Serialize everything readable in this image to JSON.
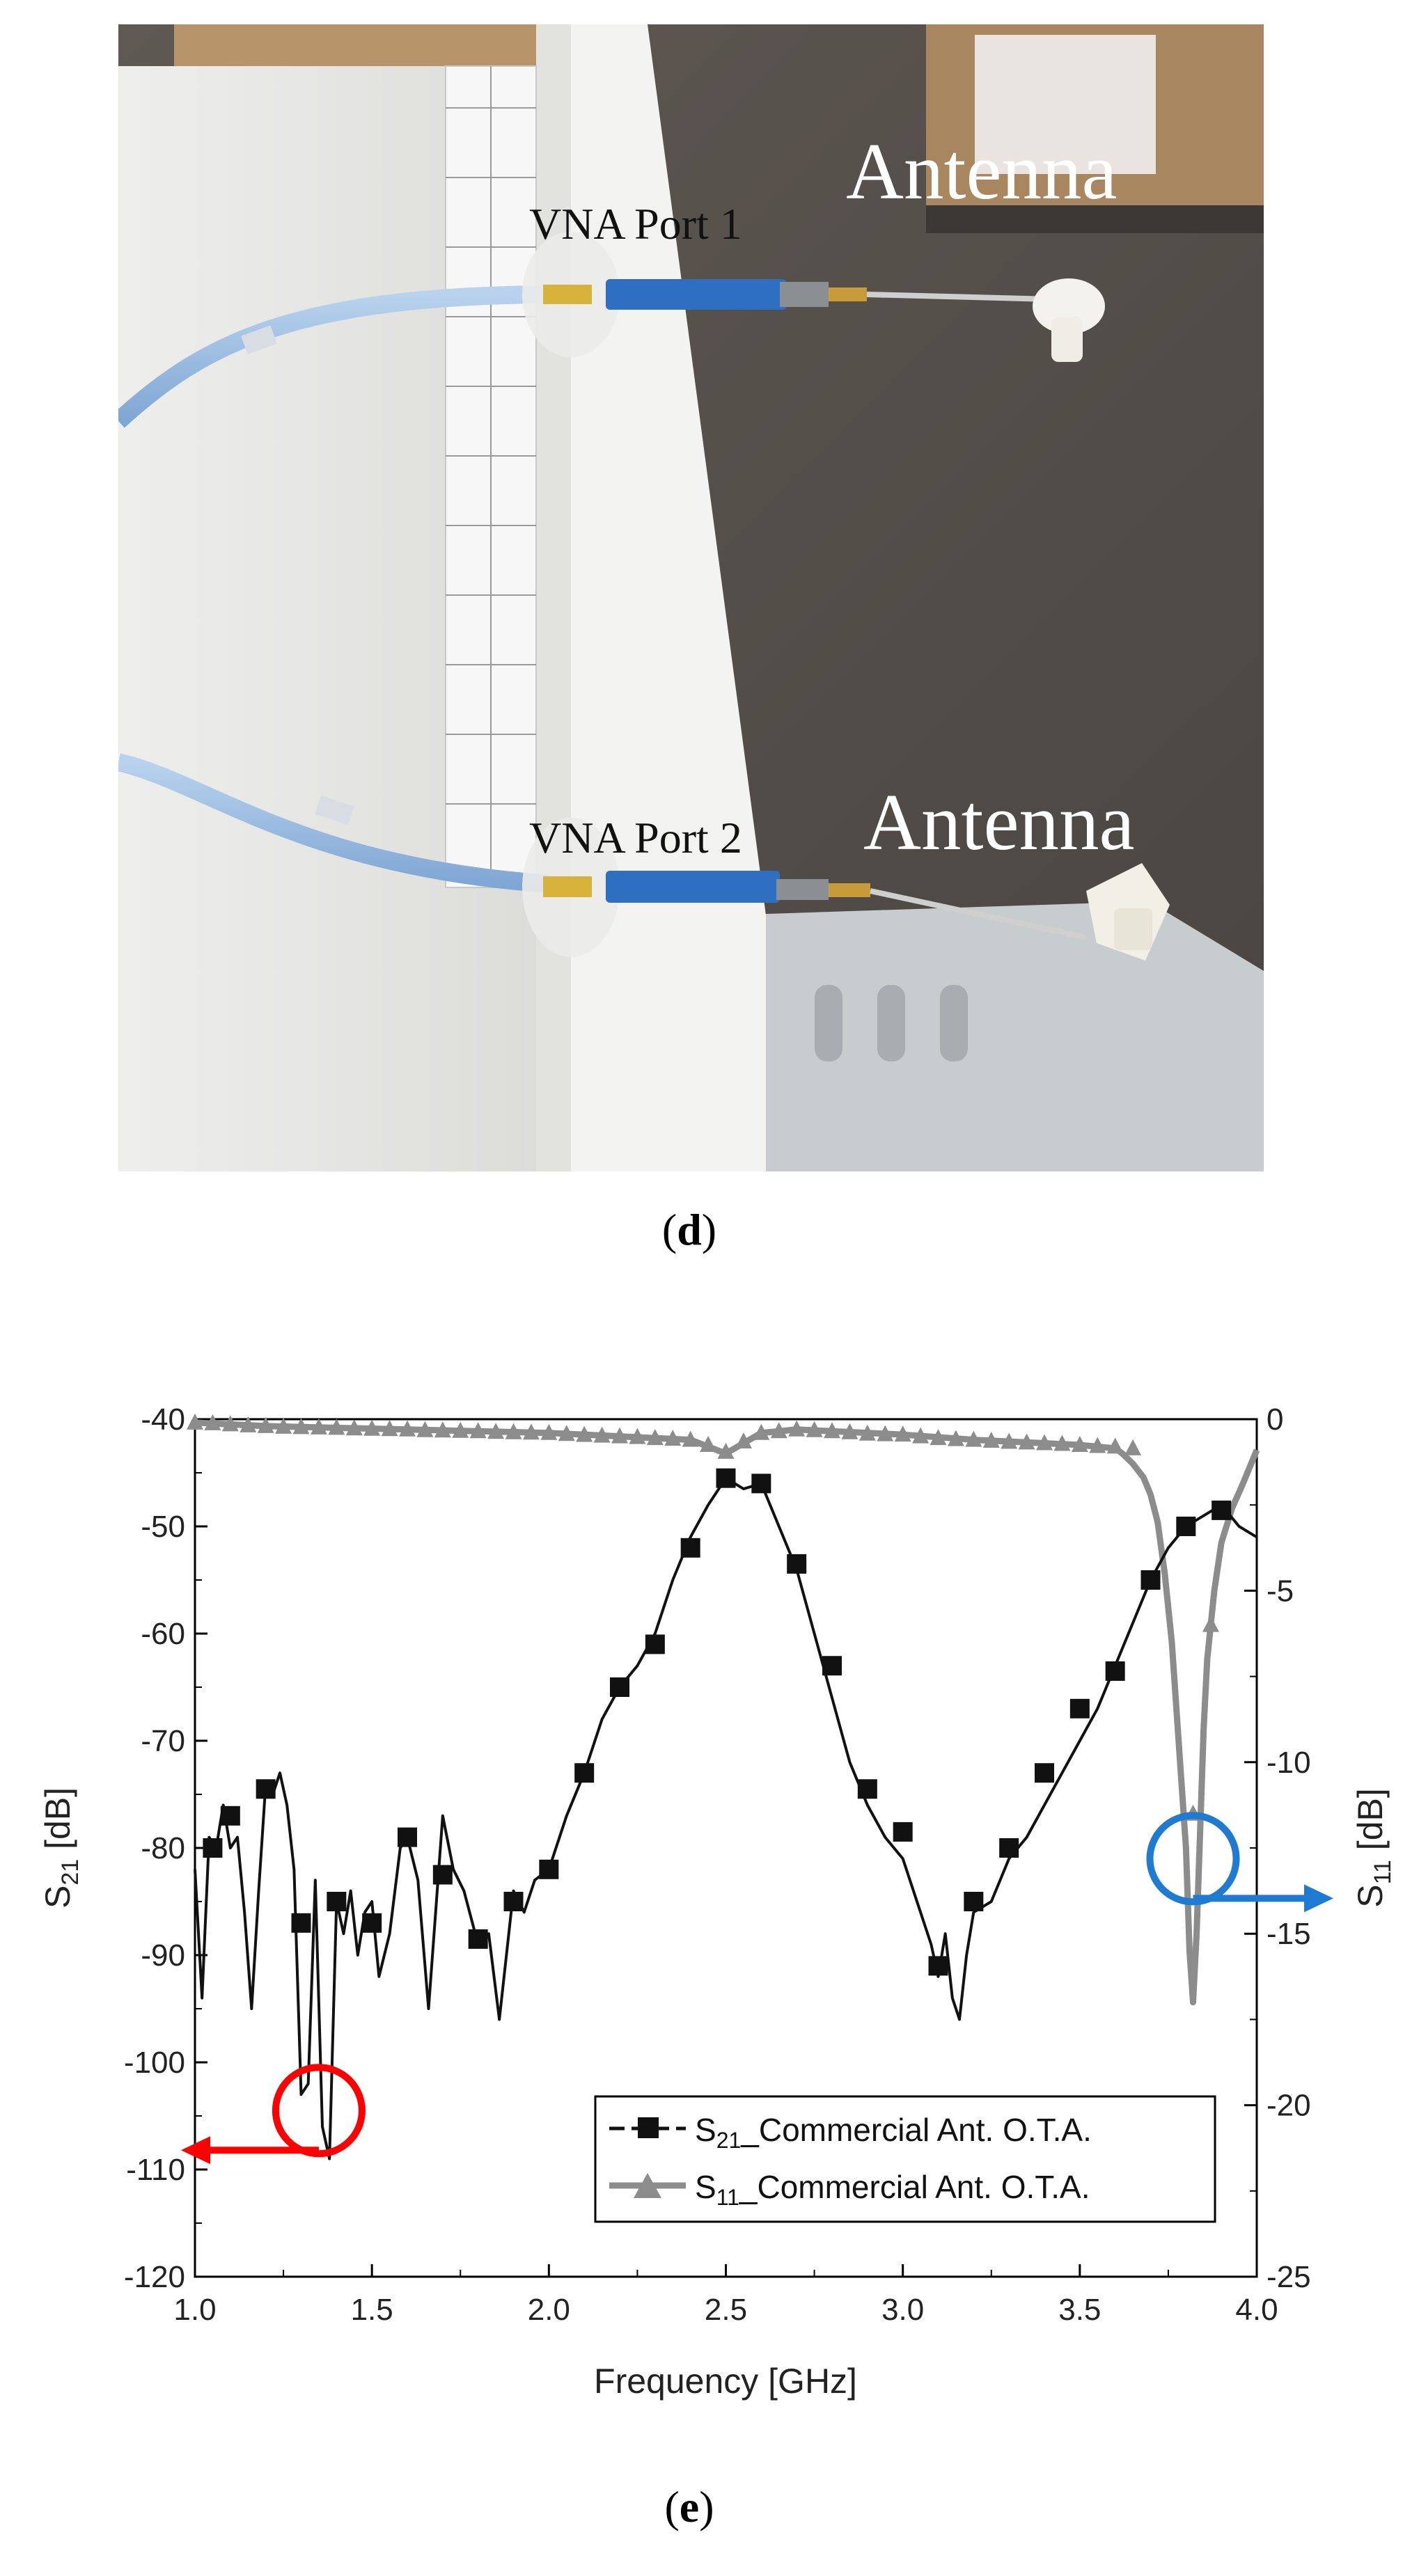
{
  "photo": {
    "labels": [
      "VNA Port 1",
      "VNA Port 2",
      "Antenna",
      "Antenna"
    ],
    "caption_open": "(",
    "caption_letter": "d",
    "caption_close": ")"
  },
  "caption_e": {
    "open": "(",
    "letter": "e",
    "close": ")"
  },
  "chart_data": {
    "type": "line",
    "xlabel": "Frequency [GHz]",
    "ylabel_left": {
      "main": "S",
      "sub": "21",
      "rest": " [dB]"
    },
    "ylabel_right": {
      "main": "S",
      "sub": "11",
      "rest": " [dB]"
    },
    "xlim": [
      1.0,
      4.0
    ],
    "ylim_left": [
      -120,
      -40
    ],
    "ylim_right": [
      -25,
      0
    ],
    "x_ticks": [
      "1.0",
      "1.5",
      "2.0",
      "2.5",
      "3.0",
      "3.5",
      "4.0"
    ],
    "y_left_ticks": [
      "-40",
      "-50",
      "-60",
      "-70",
      "-80",
      "-90",
      "-100",
      "-110",
      "-120"
    ],
    "y_right_ticks": [
      "0",
      "-5",
      "-10",
      "-15",
      "-20",
      "-25"
    ],
    "legend_position": "bottom-right",
    "series": [
      {
        "name_main": "S",
        "name_sub": "21",
        "name_rest": "_Commercial Ant. O.T.A.",
        "axis": "left",
        "color": "#111111",
        "marker": "square",
        "dash": true,
        "x": [
          1.0,
          1.02,
          1.04,
          1.06,
          1.08,
          1.1,
          1.12,
          1.14,
          1.16,
          1.18,
          1.2,
          1.22,
          1.24,
          1.26,
          1.28,
          1.3,
          1.32,
          1.34,
          1.36,
          1.38,
          1.4,
          1.42,
          1.44,
          1.46,
          1.48,
          1.5,
          1.52,
          1.55,
          1.58,
          1.6,
          1.63,
          1.66,
          1.7,
          1.73,
          1.76,
          1.8,
          1.83,
          1.86,
          1.9,
          1.93,
          1.96,
          2.0,
          2.05,
          2.1,
          2.15,
          2.2,
          2.25,
          2.3,
          2.35,
          2.4,
          2.45,
          2.5,
          2.55,
          2.6,
          2.65,
          2.7,
          2.75,
          2.8,
          2.85,
          2.9,
          2.95,
          3.0,
          3.05,
          3.08,
          3.1,
          3.12,
          3.14,
          3.16,
          3.18,
          3.2,
          3.25,
          3.3,
          3.35,
          3.4,
          3.45,
          3.5,
          3.55,
          3.6,
          3.65,
          3.7,
          3.75,
          3.8,
          3.85,
          3.9,
          3.95,
          4.0
        ],
        "y": [
          -82,
          -94,
          -79,
          -80,
          -76,
          -80,
          -79,
          -86,
          -95,
          -84,
          -74,
          -75,
          -73,
          -76,
          -82,
          -103,
          -102,
          -83,
          -106,
          -109,
          -85,
          -88,
          -84,
          -90,
          -86,
          -85,
          -92,
          -88,
          -80,
          -79,
          -83,
          -95,
          -77,
          -82,
          -84,
          -89,
          -88,
          -96,
          -84,
          -86,
          -83,
          -82,
          -77,
          -73,
          -68,
          -65,
          -63,
          -60,
          -55,
          -51,
          -48,
          -45.5,
          -46.5,
          -46,
          -50,
          -54,
          -60,
          -66,
          -72,
          -76,
          -79,
          -81,
          -86,
          -89,
          -92,
          -88,
          -94,
          -96,
          -90,
          -86,
          -85,
          -81,
          -79,
          -76,
          -73,
          -70,
          -67,
          -63,
          -59,
          -55,
          -52,
          -50,
          -49,
          -48,
          -50,
          -51
        ],
        "marker_x": [
          1.05,
          1.1,
          1.2,
          1.3,
          1.4,
          1.5,
          1.6,
          1.7,
          1.8,
          1.9,
          2.0,
          2.1,
          2.2,
          2.3,
          2.4,
          2.5,
          2.6,
          2.7,
          2.8,
          2.9,
          3.0,
          3.1,
          3.2,
          3.3,
          3.4,
          3.5,
          3.6,
          3.7,
          3.8,
          3.9
        ],
        "marker_y": [
          -80,
          -77,
          -74.5,
          -87,
          -85,
          -87,
          -79,
          -82.5,
          -88.5,
          -85,
          -82,
          -73,
          -65,
          -61,
          -52,
          -45.5,
          -46,
          -53.5,
          -63,
          -74.5,
          -78.5,
          -91,
          -85,
          -80,
          -73,
          -67,
          -63.5,
          -55,
          -50,
          -48.5
        ]
      },
      {
        "name_main": "S",
        "name_sub": "11",
        "name_rest": "_Commercial Ant. O.T.A.",
        "axis": "right",
        "color": "#8c8c8c",
        "marker": "triangle",
        "dash": false,
        "x": [
          1.0,
          1.2,
          1.4,
          1.6,
          1.8,
          2.0,
          2.2,
          2.3,
          2.4,
          2.45,
          2.5,
          2.55,
          2.6,
          2.7,
          2.8,
          3.0,
          3.2,
          3.4,
          3.5,
          3.55,
          3.6,
          3.62,
          3.65,
          3.68,
          3.7,
          3.72,
          3.74,
          3.76,
          3.78,
          3.8,
          3.81,
          3.82,
          3.83,
          3.84,
          3.85,
          3.86,
          3.88,
          3.9,
          3.93,
          3.96,
          4.0
        ],
        "y": [
          -0.1,
          -0.2,
          -0.25,
          -0.3,
          -0.35,
          -0.4,
          -0.5,
          -0.55,
          -0.6,
          -0.8,
          -1.0,
          -0.7,
          -0.4,
          -0.3,
          -0.35,
          -0.45,
          -0.6,
          -0.7,
          -0.75,
          -0.8,
          -0.85,
          -1.0,
          -1.3,
          -1.7,
          -2.2,
          -3.0,
          -4.5,
          -6.5,
          -9.5,
          -12.5,
          -15.5,
          -17.0,
          -15.0,
          -12.0,
          -9.0,
          -7.0,
          -5.0,
          -3.6,
          -2.6,
          -1.9,
          -0.9
        ],
        "marker_x": [
          1.0,
          1.05,
          1.1,
          1.15,
          1.2,
          1.25,
          1.3,
          1.35,
          1.4,
          1.45,
          1.5,
          1.55,
          1.6,
          1.65,
          1.7,
          1.75,
          1.8,
          1.85,
          1.9,
          1.95,
          2.0,
          2.05,
          2.1,
          2.15,
          2.2,
          2.25,
          2.3,
          2.35,
          2.4,
          2.45,
          2.5,
          2.55,
          2.6,
          2.65,
          2.7,
          2.75,
          2.8,
          2.85,
          2.9,
          2.95,
          3.0,
          3.05,
          3.1,
          3.15,
          3.2,
          3.25,
          3.3,
          3.35,
          3.4,
          3.45,
          3.5,
          3.55,
          3.6,
          3.65,
          3.82,
          3.87
        ],
        "marker_y": [
          -0.1,
          -0.12,
          -0.15,
          -0.18,
          -0.2,
          -0.22,
          -0.23,
          -0.24,
          -0.25,
          -0.27,
          -0.28,
          -0.29,
          -0.3,
          -0.32,
          -0.33,
          -0.34,
          -0.35,
          -0.37,
          -0.38,
          -0.39,
          -0.4,
          -0.43,
          -0.46,
          -0.48,
          -0.5,
          -0.52,
          -0.55,
          -0.57,
          -0.6,
          -0.75,
          -0.95,
          -0.65,
          -0.4,
          -0.35,
          -0.3,
          -0.32,
          -0.35,
          -0.38,
          -0.42,
          -0.44,
          -0.45,
          -0.5,
          -0.55,
          -0.58,
          -0.6,
          -0.63,
          -0.66,
          -0.68,
          -0.7,
          -0.72,
          -0.75,
          -0.78,
          -0.8,
          -0.85,
          -11.5,
          -6.0
        ]
      }
    ],
    "annotations": [
      {
        "shape": "circle",
        "color": "#ff0000",
        "x": 1.35,
        "y_left": -104.5,
        "arrow": "left"
      },
      {
        "shape": "circle",
        "color": "#1f7bd1",
        "x": 3.82,
        "y_left": -81,
        "arrow": "right"
      }
    ]
  }
}
